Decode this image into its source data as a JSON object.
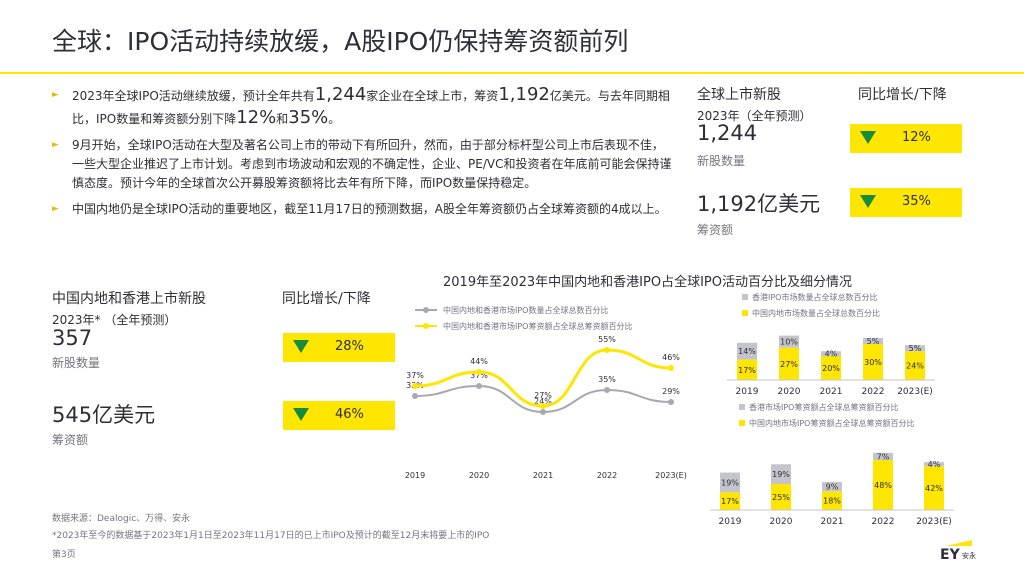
{
  "title": "全球：IPO活动持续放缓，A股IPO仍保持筹资额前列",
  "bullets": {
    "b1": {
      "p1": "2023年全球IPO活动继续放缓，预计全年共有",
      "n1": "1,244",
      "p2": "家企业在全球上市，筹资",
      "n2": "1,192",
      "p3": "亿美元。与去年同期相比，IPO数量和筹资额分别下降",
      "n3": "12%",
      "p4": "和",
      "n4": "35%",
      "p5": "。"
    },
    "b2": "9月开始，全球IPO活动在大型及著名公司上市的带动下有所回升，然而，由于部分标杆型公司上市后表现不佳，一些大型企业推迟了上市计划。考虑到市场波动和宏观的不确定性，企业、PE/VC和投资者在年底前可能会保持谨慎态度。预计今年的全球首次公开募股筹资额将比去年有所下降，而IPO数量保持稳定。",
    "b3": "中国内地仍是全球IPO活动的重要地区，截至11月17日的预测数据，A股全年筹资额仍占全球筹资额的4成以上。"
  },
  "global_panel": {
    "heading": "全球上市新股",
    "subheading": "2023年（全年预测）",
    "yoy_heading": "同比增长/下降",
    "count_value": "1,244",
    "count_label": "新股数量",
    "amount_value": "1,192亿美元",
    "amount_label": "筹资额",
    "count_change": "12%",
    "amount_change": "35%"
  },
  "china_panel": {
    "heading": "中国内地和香港上市新股",
    "subheading": "2023年* （全年预测）",
    "yoy_heading": "同比增长/下降",
    "count_value": "357",
    "count_label": "新股数量",
    "amount_value": "545亿美元",
    "amount_label": "筹资额",
    "count_change": "28%",
    "amount_change": "46%"
  },
  "chart_title": "2019年至2023年中国内地和香港IPO占全球IPO活动百分比及细分情况",
  "chart_data": [
    {
      "type": "line",
      "categories": [
        "2019",
        "2020",
        "2021",
        "2022",
        "2023(E)"
      ],
      "series": [
        {
          "name": "中国内地和香港市场IPO数量占全球总数百分比",
          "color": "#a8a8b0",
          "values": [
            32,
            37,
            24,
            35,
            29
          ],
          "labels": [
            "32%",
            "37%",
            "24%",
            "35%",
            "29%"
          ]
        },
        {
          "name": "中国内地和香港市场IPO筹资额占全球总筹资额百分比",
          "color": "#ffe600",
          "values": [
            37,
            44,
            27,
            55,
            46
          ],
          "labels": [
            "37%",
            "44%",
            "27%",
            "55%",
            "46%"
          ]
        }
      ],
      "ylim": [
        0,
        60
      ]
    },
    {
      "type": "bar",
      "stacked": true,
      "categories": [
        "2019",
        "2020",
        "2021",
        "2022",
        "2023(E)"
      ],
      "series": [
        {
          "name": "中国内地市场数量占全球总数百分比",
          "color": "#ffe600",
          "values": [
            17,
            27,
            20,
            30,
            24
          ],
          "labels": [
            "17%",
            "27%",
            "20%",
            "30%",
            "24%"
          ]
        },
        {
          "name": "香港IPO市场数量占全球总数百分比",
          "color": "#c4c4cd",
          "values": [
            14,
            10,
            4,
            5,
            5
          ],
          "labels": [
            "14%",
            "10%",
            "4%",
            "5%",
            "5%"
          ]
        }
      ]
    },
    {
      "type": "bar",
      "stacked": true,
      "categories": [
        "2019",
        "2020",
        "2021",
        "2022",
        "2023(E)"
      ],
      "series": [
        {
          "name": "中国内地市场IPO筹资额占全球总筹资额百分比",
          "color": "#ffe600",
          "values": [
            17,
            25,
            18,
            48,
            42
          ],
          "labels": [
            "17%",
            "25%",
            "18%",
            "48%",
            "42%"
          ]
        },
        {
          "name": "香港市场IPO筹资额占全球总筹资额百分比",
          "color": "#c4c4cd",
          "values": [
            19,
            19,
            9,
            7,
            4
          ],
          "labels": [
            "19%",
            "19%",
            "9%",
            "7%",
            "4%"
          ]
        }
      ]
    }
  ],
  "footer": {
    "source": "数据来源：Dealogic、万得、安永",
    "note": "*2023年至今的数据基于2023年1月1日至2023年11月17日的已上市IPO及预计的截至12月末将要上市的IPO",
    "page": "第3页"
  },
  "logo": {
    "text": "EY",
    "sub": "安永"
  },
  "colors": {
    "accent": "#ffe600",
    "down": "#188c3c",
    "grey": "#a8a8b0"
  }
}
